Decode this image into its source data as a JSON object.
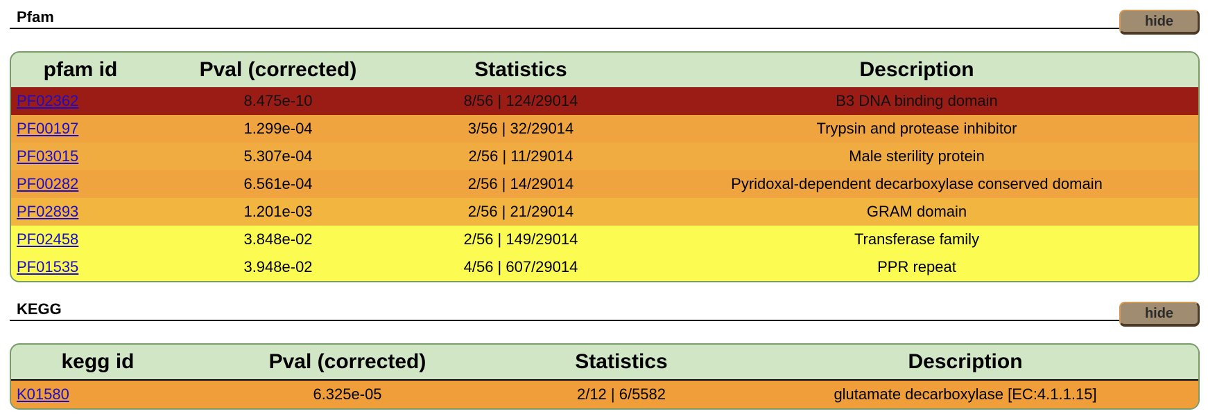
{
  "pfam": {
    "title": "Pfam",
    "hide_label": "hide",
    "columns": [
      "pfam id",
      "Pval (corrected)",
      "Statistics",
      "Description"
    ],
    "rows": [
      {
        "id": "PF02362",
        "pval": "8.475e-10",
        "stats": "8/56 | 124/29014",
        "desc": "B3 DNA binding domain",
        "color": "#9b1c15",
        "text_color": "#111111"
      },
      {
        "id": "PF00197",
        "pval": "1.299e-04",
        "stats": "3/56 | 32/29014",
        "desc": "Trypsin and protease inhibitor",
        "color": "#f0a440",
        "text_color": "#000000"
      },
      {
        "id": "PF03015",
        "pval": "5.307e-04",
        "stats": "2/56 | 11/29014",
        "desc": "Male sterility protein",
        "color": "#f1ac41",
        "text_color": "#000000"
      },
      {
        "id": "PF00282",
        "pval": "6.561e-04",
        "stats": "2/56 | 14/29014",
        "desc": "Pyridoxal-dependent decarboxylase conserved domain",
        "color": "#f0a43f",
        "text_color": "#000000"
      },
      {
        "id": "PF02893",
        "pval": "1.201e-03",
        "stats": "2/56 | 21/29014",
        "desc": "GRAM domain",
        "color": "#f2b540",
        "text_color": "#000000"
      },
      {
        "id": "PF02458",
        "pval": "3.848e-02",
        "stats": "2/56 | 149/29014",
        "desc": "Transferase family",
        "color": "#fbfb52",
        "text_color": "#000000"
      },
      {
        "id": "PF01535",
        "pval": "3.948e-02",
        "stats": "4/56 | 607/29014",
        "desc": "PPR repeat",
        "color": "#fbfb52",
        "text_color": "#000000"
      }
    ]
  },
  "kegg": {
    "title": "KEGG",
    "hide_label": "hide",
    "columns": [
      "kegg id",
      "Pval (corrected)",
      "Statistics",
      "Description"
    ],
    "rows": [
      {
        "id": "K01580",
        "pval": "6.325e-05",
        "stats": "2/12 | 6/5582",
        "desc": "glutamate decarboxylase [EC:4.1.1.15]",
        "color": "#f09e3a",
        "text_color": "#000000"
      }
    ]
  }
}
